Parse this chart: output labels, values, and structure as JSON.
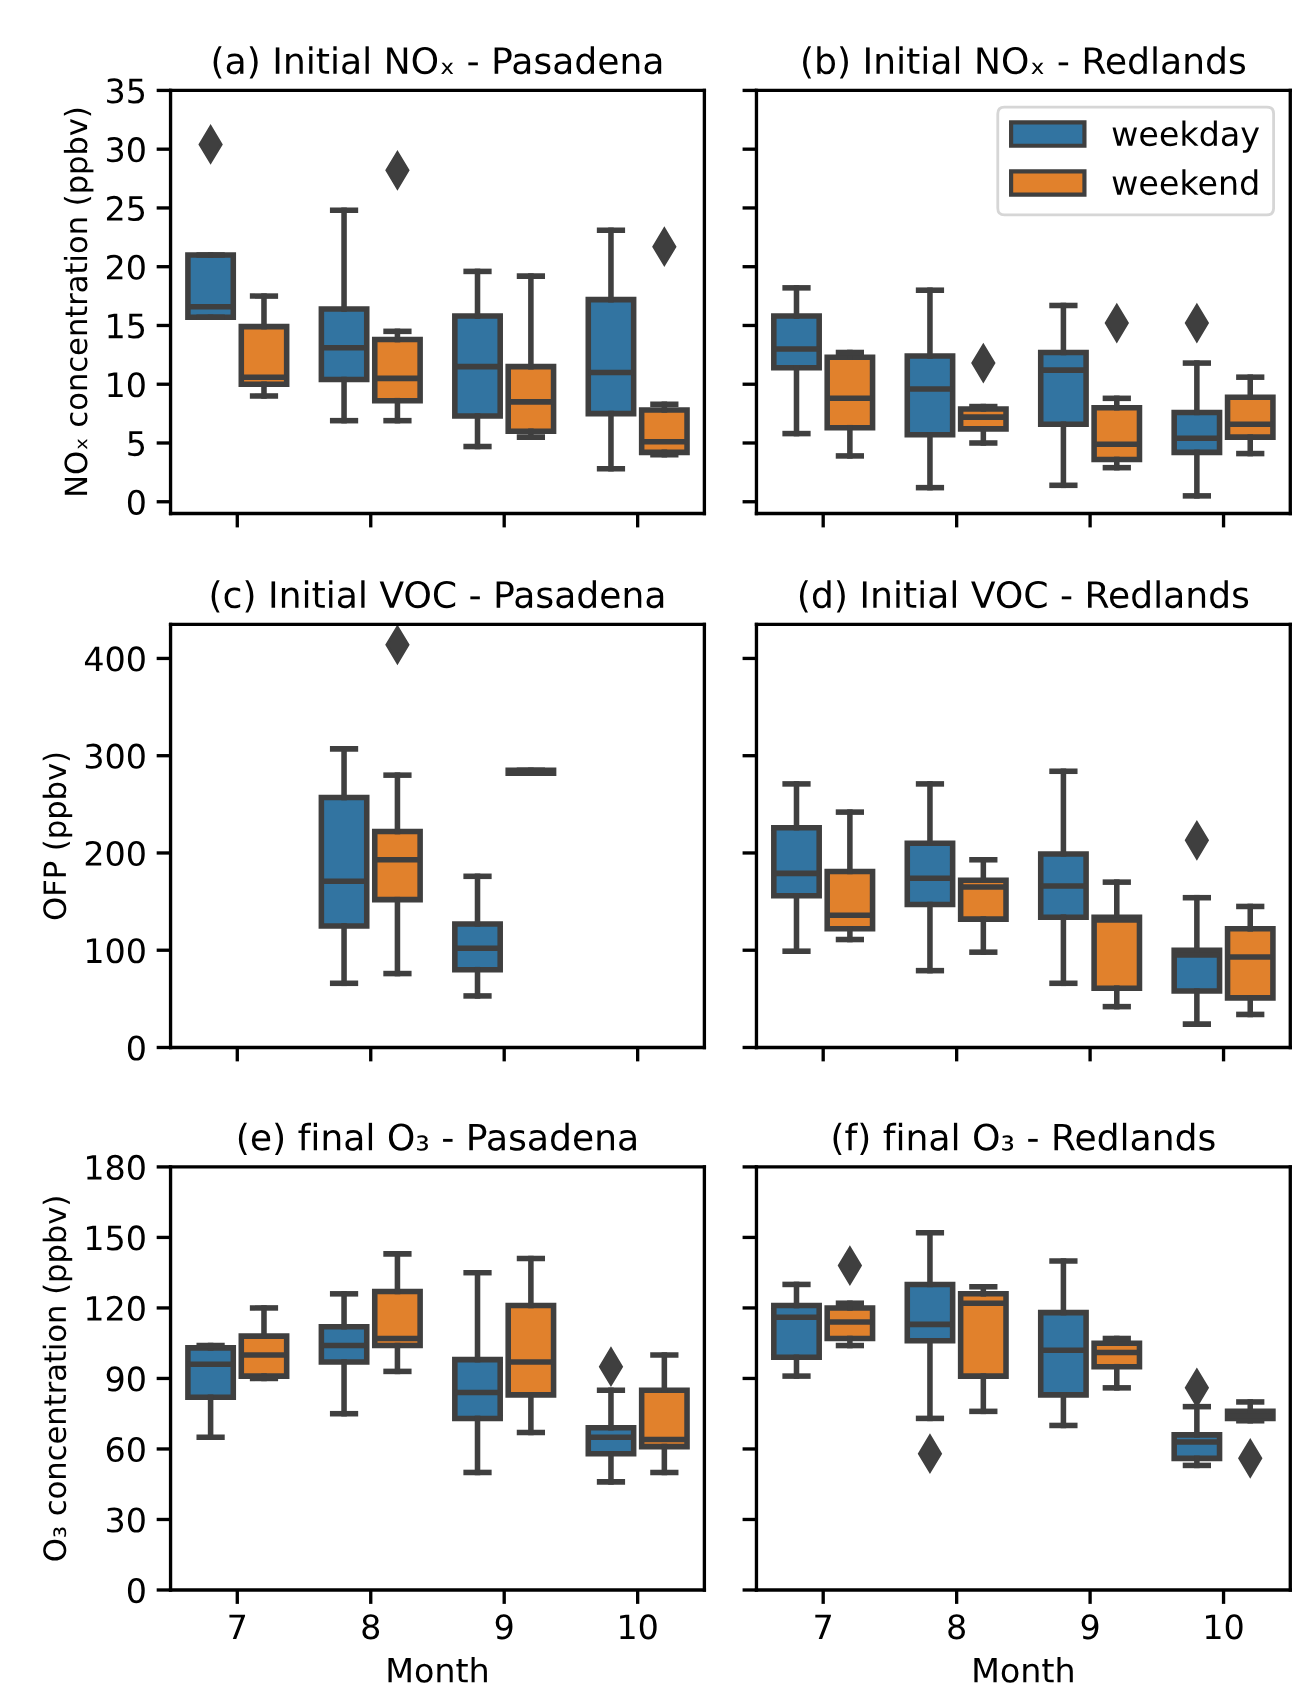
{
  "chart_data": [
    {
      "type": "box",
      "title": "(a) Initial NOₓ - Pasadena",
      "ylabel": "NOₓ concentration (ppbv)",
      "categories": [
        "7",
        "8",
        "9",
        "10"
      ],
      "ylim": [
        -1,
        35
      ],
      "yticks": [
        0,
        5,
        10,
        15,
        20,
        25,
        30,
        35
      ],
      "tick_labels": "y",
      "series": [
        {
          "color": "#3274a1",
          "boxes": [
            {
              "low": 15.7,
              "q1": 15.7,
              "median": 16.6,
              "q3": 21.0,
              "high": 21.0,
              "outliers": [
                30.4
              ]
            },
            {
              "low": 6.9,
              "q1": 10.4,
              "median": 13.1,
              "q3": 16.4,
              "high": 24.8
            },
            {
              "low": 4.7,
              "q1": 7.3,
              "median": 11.5,
              "q3": 15.8,
              "high": 19.6
            },
            {
              "low": 2.8,
              "q1": 7.5,
              "median": 11.0,
              "q3": 17.2,
              "high": 23.1
            }
          ]
        },
        {
          "color": "#e1812c",
          "boxes": [
            {
              "low": 9.0,
              "q1": 10.0,
              "median": 10.6,
              "q3": 14.9,
              "high": 17.5
            },
            {
              "low": 6.9,
              "q1": 8.6,
              "median": 10.5,
              "q3": 13.8,
              "high": 14.5,
              "outliers": [
                28.2
              ]
            },
            {
              "low": 5.5,
              "q1": 6.0,
              "median": 8.5,
              "q3": 11.5,
              "high": 19.2
            },
            {
              "low": 4.0,
              "q1": 4.2,
              "median": 5.1,
              "q3": 7.8,
              "high": 8.3,
              "outliers": [
                21.7
              ]
            }
          ]
        }
      ]
    },
    {
      "type": "box",
      "title": "(b) Initial NOₓ - Redlands",
      "categories": [
        "7",
        "8",
        "9",
        "10"
      ],
      "ylim": [
        -1,
        35
      ],
      "yticks": [
        0,
        5,
        10,
        15,
        20,
        25,
        30,
        35
      ],
      "tick_labels": false,
      "legend": "top right",
      "series": [
        {
          "name": "weekday",
          "color": "#3274a1",
          "boxes": [
            {
              "low": 5.8,
              "q1": 11.4,
              "median": 13.0,
              "q3": 15.8,
              "high": 18.2
            },
            {
              "low": 1.2,
              "q1": 5.7,
              "median": 9.6,
              "q3": 12.4,
              "high": 18.0
            },
            {
              "low": 1.4,
              "q1": 6.6,
              "median": 11.2,
              "q3": 12.7,
              "high": 16.7
            },
            {
              "low": 0.5,
              "q1": 4.2,
              "median": 5.4,
              "q3": 7.6,
              "high": 11.8,
              "outliers": [
                15.2
              ]
            }
          ]
        },
        {
          "name": "weekend",
          "color": "#e1812c",
          "boxes": [
            {
              "low": 3.9,
              "q1": 6.3,
              "median": 8.8,
              "q3": 12.3,
              "high": 12.7
            },
            {
              "low": 5.0,
              "q1": 6.2,
              "median": 7.2,
              "q3": 7.9,
              "high": 8.1,
              "outliers": [
                11.8
              ]
            },
            {
              "low": 2.9,
              "q1": 3.6,
              "median": 4.9,
              "q3": 8.0,
              "high": 8.8,
              "outliers": [
                15.2
              ]
            },
            {
              "low": 4.1,
              "q1": 5.5,
              "median": 6.6,
              "q3": 8.9,
              "high": 10.6
            }
          ]
        }
      ]
    },
    {
      "type": "box",
      "title": "(c) Initial VOC - Pasadena",
      "ylabel": "OFP (ppbv)",
      "categories": [
        "7",
        "8",
        "9",
        "10"
      ],
      "ylim": [
        0,
        435
      ],
      "yticks": [
        0,
        100,
        200,
        300,
        400
      ],
      "tick_labels": "y",
      "series": [
        {
          "color": "#3274a1",
          "boxes": [
            null,
            {
              "low": 66,
              "q1": 125,
              "median": 171,
              "q3": 257,
              "high": 307
            },
            {
              "low": 53,
              "q1": 80,
              "median": 102,
              "q3": 127,
              "high": 176
            },
            null
          ]
        },
        {
          "color": "#e1812c",
          "boxes": [
            null,
            {
              "low": 76,
              "q1": 152,
              "median": 193,
              "q3": 222,
              "high": 280,
              "outliers": [
                414
              ]
            },
            {
              "low": 282,
              "q1": 282,
              "median": 283,
              "q3": 285,
              "high": 285
            },
            null
          ]
        }
      ]
    },
    {
      "type": "box",
      "title": "(d) Initial VOC - Redlands",
      "categories": [
        "7",
        "8",
        "9",
        "10"
      ],
      "ylim": [
        0,
        435
      ],
      "yticks": [
        0,
        100,
        200,
        300,
        400
      ],
      "tick_labels": false,
      "series": [
        {
          "color": "#3274a1",
          "boxes": [
            {
              "low": 99,
              "q1": 156,
              "median": 179,
              "q3": 226,
              "high": 271
            },
            {
              "low": 79,
              "q1": 147,
              "median": 174,
              "q3": 210,
              "high": 271
            },
            {
              "low": 66,
              "q1": 134,
              "median": 166,
              "q3": 199,
              "high": 284
            },
            {
              "low": 24,
              "q1": 58,
              "median": 95,
              "q3": 100,
              "high": 154,
              "outliers": [
                213
              ]
            }
          ]
        },
        {
          "color": "#e1812c",
          "boxes": [
            {
              "low": 111,
              "q1": 122,
              "median": 136,
              "q3": 181,
              "high": 242
            },
            {
              "low": 98,
              "q1": 132,
              "median": 165,
              "q3": 172,
              "high": 193
            },
            {
              "low": 42,
              "q1": 61,
              "median": 131,
              "q3": 134,
              "high": 170
            },
            {
              "low": 34,
              "q1": 51,
              "median": 93,
              "q3": 122,
              "high": 145
            }
          ]
        }
      ]
    },
    {
      "type": "box",
      "title": "(e) final O₃ - Pasadena",
      "ylabel": "O₃ concentration (ppbv)",
      "xlabel": "Month",
      "categories": [
        "7",
        "8",
        "9",
        "10"
      ],
      "ylim": [
        0,
        180
      ],
      "yticks": [
        0,
        30,
        60,
        90,
        120,
        150,
        180
      ],
      "series": [
        {
          "color": "#3274a1",
          "boxes": [
            {
              "low": 65,
              "q1": 82,
              "median": 96,
              "q3": 103,
              "high": 104
            },
            {
              "low": 75,
              "q1": 97,
              "median": 104,
              "q3": 112,
              "high": 126
            },
            {
              "low": 50,
              "q1": 73,
              "median": 84,
              "q3": 98,
              "high": 135
            },
            {
              "low": 46,
              "q1": 58,
              "median": 65,
              "q3": 69,
              "high": 85,
              "outliers": [
                95
              ]
            }
          ]
        },
        {
          "color": "#e1812c",
          "boxes": [
            {
              "low": 90,
              "q1": 91,
              "median": 100,
              "q3": 108,
              "high": 120
            },
            {
              "low": 93,
              "q1": 104,
              "median": 107,
              "q3": 127,
              "high": 143
            },
            {
              "low": 67,
              "q1": 83,
              "median": 97,
              "q3": 121,
              "high": 141
            },
            {
              "low": 50,
              "q1": 61,
              "median": 64,
              "q3": 85,
              "high": 100
            }
          ]
        }
      ]
    },
    {
      "type": "box",
      "title": "(f) final O₃ - Redlands",
      "xlabel": "Month",
      "categories": [
        "7",
        "8",
        "9",
        "10"
      ],
      "ylim": [
        0,
        180
      ],
      "yticks": [
        0,
        30,
        60,
        90,
        120,
        150,
        180
      ],
      "tick_labels": "x",
      "series": [
        {
          "color": "#3274a1",
          "boxes": [
            {
              "low": 91,
              "q1": 99,
              "median": 116,
              "q3": 121,
              "high": 130
            },
            {
              "low": 73,
              "q1": 106,
              "median": 113,
              "q3": 130,
              "high": 152,
              "outliers": [
                58
              ]
            },
            {
              "low": 70,
              "q1": 83,
              "median": 102,
              "q3": 118,
              "high": 140
            },
            {
              "low": 53,
              "q1": 56,
              "median": 63,
              "q3": 66,
              "high": 78,
              "outliers": [
                86
              ]
            }
          ]
        },
        {
          "color": "#e1812c",
          "boxes": [
            {
              "low": 104,
              "q1": 107,
              "median": 114,
              "q3": 120,
              "high": 122,
              "outliers": [
                138
              ]
            },
            {
              "low": 76,
              "q1": 91,
              "median": 122,
              "q3": 126,
              "high": 129
            },
            {
              "low": 86,
              "q1": 95,
              "median": 101,
              "q3": 105,
              "high": 107
            },
            {
              "low": 72,
              "q1": 73,
              "median": 74,
              "q3": 76,
              "high": 80,
              "outliers": [
                56
              ]
            }
          ]
        }
      ]
    }
  ]
}
